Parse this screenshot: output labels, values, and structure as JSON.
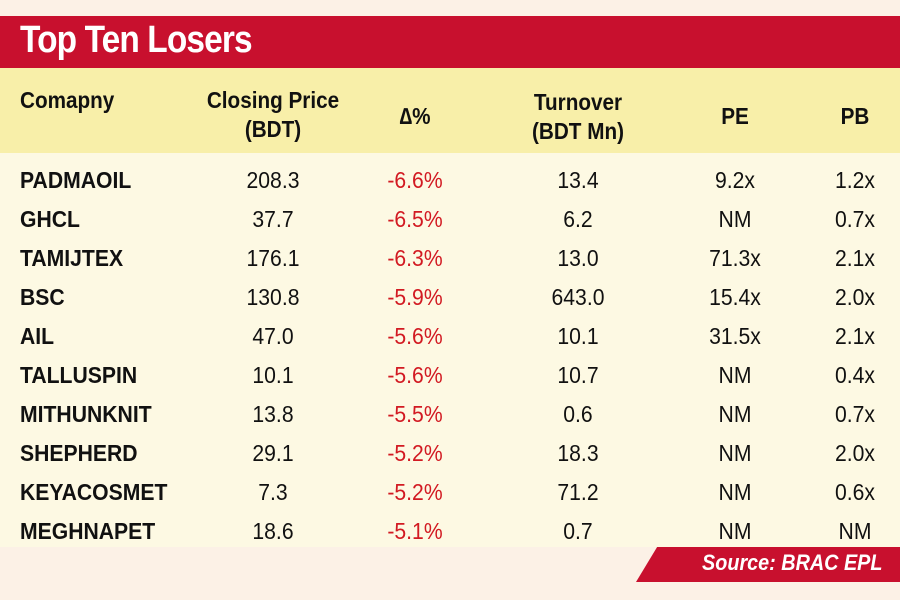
{
  "title": "Top Ten Losers",
  "headers": {
    "company": "Comapny",
    "closing_price": [
      "Closing Price",
      "(BDT)"
    ],
    "change": "∆%",
    "turnover": [
      "Turnover",
      "(BDT Mn)"
    ],
    "pe": "PE",
    "pb": "PB"
  },
  "rows": [
    {
      "company": "PADMAOIL",
      "closing": "208.3",
      "change": "-6.6%",
      "turnover": "13.4",
      "pe": "9.2x",
      "pb": "1.2x"
    },
    {
      "company": "GHCL",
      "closing": "37.7",
      "change": "-6.5%",
      "turnover": "6.2",
      "pe": "NM",
      "pb": "0.7x"
    },
    {
      "company": "TAMIJTEX",
      "closing": "176.1",
      "change": "-6.3%",
      "turnover": "13.0",
      "pe": "71.3x",
      "pb": "2.1x"
    },
    {
      "company": "BSC",
      "closing": "130.8",
      "change": "-5.9%",
      "turnover": "643.0",
      "pe": "15.4x",
      "pb": "2.0x"
    },
    {
      "company": "AIL",
      "closing": "47.0",
      "change": "-5.6%",
      "turnover": "10.1",
      "pe": "31.5x",
      "pb": "2.1x"
    },
    {
      "company": "TALLUSPIN",
      "closing": "10.1",
      "change": "-5.6%",
      "turnover": "10.7",
      "pe": "NM",
      "pb": "0.4x"
    },
    {
      "company": "MITHUNKNIT",
      "closing": "13.8",
      "change": "-5.5%",
      "turnover": "0.6",
      "pe": "NM",
      "pb": "0.7x"
    },
    {
      "company": "SHEPHERD",
      "closing": "29.1",
      "change": "-5.2%",
      "turnover": "18.3",
      "pe": "NM",
      "pb": "2.0x"
    },
    {
      "company": "KEYACOSMET",
      "closing": "7.3",
      "change": "-5.2%",
      "turnover": "71.2",
      "pe": "NM",
      "pb": "0.6x"
    },
    {
      "company": "MEGHNAPET",
      "closing": "18.6",
      "change": "-5.1%",
      "turnover": "0.7",
      "pe": "NM",
      "pb": "NM"
    }
  ],
  "source": "Source: BRAC EPL",
  "colors": {
    "banner": "#c8102e",
    "header_bg": "#f8efa9",
    "body_bg": "#fdf9e3",
    "negative": "#d21a22"
  }
}
